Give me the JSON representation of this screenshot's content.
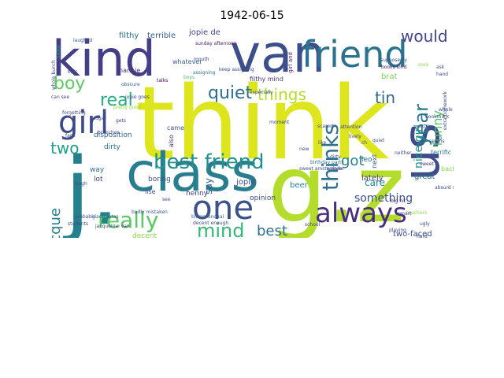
{
  "title": "1942-06-15",
  "words": [
    {
      "t": "think",
      "c": "#dde51c"
    },
    {
      "t": "g.z",
      "c": "#b3dc2c"
    },
    {
      "t": "j.",
      "c": "#25808e"
    },
    {
      "t": "class",
      "c": "#287d8e"
    },
    {
      "t": "van",
      "c": "#3c4f8a"
    },
    {
      "t": "kind",
      "c": "#433e85"
    },
    {
      "t": "us",
      "c": "#3d4d8a"
    },
    {
      "t": "friend",
      "c": "#2c728e"
    },
    {
      "t": "always",
      "c": "#472f7d"
    },
    {
      "t": "one",
      "c": "#3b528b"
    },
    {
      "t": "really",
      "c": "#5cc863"
    },
    {
      "t": "girl",
      "c": "#3e4989"
    },
    {
      "t": "best friend",
      "c": "#21908d"
    },
    {
      "t": "mind",
      "c": "#35b779"
    },
    {
      "t": "best",
      "c": "#2d708e"
    },
    {
      "t": "thinks",
      "c": "#2c728e"
    },
    {
      "t": "quiet",
      "c": "#2e6e8e"
    },
    {
      "t": "things",
      "c": "#b5de2b"
    },
    {
      "t": "tin",
      "c": "#31688e"
    },
    {
      "t": "boy",
      "c": "#5ec962"
    },
    {
      "t": "real",
      "c": "#29af7f"
    },
    {
      "t": "would",
      "c": "#414487"
    },
    {
      "t": "two",
      "c": "#1f9e89"
    },
    {
      "t": "got",
      "c": "#26828e"
    },
    {
      "t": "jacque",
      "c": "#277f8e"
    },
    {
      "t": "year",
      "c": "#2a788e"
    },
    {
      "t": "funny",
      "c": "#52c569"
    },
    {
      "t": "nice girl",
      "c": "#1f958b"
    },
    {
      "t": "something",
      "c": "#3b528b"
    },
    {
      "t": "care",
      "c": "#25848e"
    },
    {
      "t": "say",
      "c": "#34618d"
    },
    {
      "t": "filthy",
      "c": "#306a8e"
    },
    {
      "t": "terrible",
      "c": "#355f8d"
    },
    {
      "t": "jopie de",
      "c": "#3f4788"
    },
    {
      "t": "filthy mind",
      "c": "#46327e"
    },
    {
      "t": "girl and",
      "c": "#481b6d"
    },
    {
      "t": "cheerful disposition",
      "c": "#31b57b"
    },
    {
      "t": "two-faced",
      "c": "#3e4c8a"
    },
    {
      "t": "cheerful",
      "c": "#a2da37"
    },
    {
      "t": "beer",
      "c": "#24878e"
    },
    {
      "t": "jopie",
      "c": "#3e4a89"
    },
    {
      "t": "opinion",
      "c": "#3b528b"
    },
    {
      "t": "henny",
      "c": "#433d84"
    },
    {
      "t": "boring",
      "c": "#3d4e8a"
    },
    {
      "t": "decent",
      "c": "#8bd646"
    },
    {
      "t": "dirty",
      "c": "#2d708e"
    },
    {
      "t": "disposition",
      "c": "#33638d"
    },
    {
      "t": "lot",
      "c": "#414287"
    },
    {
      "t": "way",
      "c": "#2e6d8e"
    },
    {
      "t": "nice",
      "c": "#31688e"
    },
    {
      "t": "lately",
      "c": "#424186"
    },
    {
      "t": "great",
      "c": "#2e6f8e"
    },
    {
      "t": "brat",
      "c": "#7ad151"
    },
    {
      "t": "leo",
      "c": "#2b758e"
    },
    {
      "t": "whatever",
      "c": "#355e8d"
    },
    {
      "t": "nannie",
      "c": "#472c7a"
    },
    {
      "t": "came",
      "c": "#39558c"
    },
    {
      "t": "also",
      "c": "#46327e"
    },
    {
      "t": "ilse",
      "c": "#3b528b"
    },
    {
      "t": "next",
      "c": "#34608d"
    },
    {
      "t": "terrific",
      "c": "#2a778e"
    },
    {
      "t": "back",
      "c": "#84d44b"
    },
    {
      "t": "thought",
      "c": "#6ece58"
    },
    {
      "t": "teachers",
      "c": "#b8de29"
    },
    {
      "t": "birthday party",
      "c": "#2d708e"
    },
    {
      "t": "jacqueline van",
      "c": "#3f4889"
    },
    {
      "t": "classmates",
      "c": "#355f8d"
    },
    {
      "t": "sunday afternoon",
      "c": "#48186a"
    },
    {
      "t": "boys",
      "c": "#56c667"
    },
    {
      "t": "especially",
      "c": "#39568c"
    },
    {
      "t": "assigning",
      "c": "#2a778e"
    },
    {
      "t": "badly mistaken",
      "c": "#38588c"
    },
    {
      "t": "blommendaal",
      "c": "#365d8d"
    },
    {
      "t": "decent enough",
      "c": "#3e4989"
    },
    {
      "t": "cheerful",
      "c": "#8fd744"
    },
    {
      "t": "playing",
      "c": "#3e4a89"
    },
    {
      "t": "school",
      "c": "#3e4a89"
    },
    {
      "t": "probably",
      "c": "#3e4a89"
    },
    {
      "t": "students",
      "c": "#3e4a89"
    },
    {
      "t": "books kind",
      "c": "#48186a"
    },
    {
      "t": "big hit",
      "c": "#481a6c"
    },
    {
      "t": "teachers",
      "c": "#8fd744"
    },
    {
      "t": "bookmark",
      "c": "#3e4a89"
    },
    {
      "t": "sweet",
      "c": "#46307e"
    },
    {
      "t": "quiet",
      "c": "#3d4d8a"
    },
    {
      "t": "obscure",
      "c": "#33638d"
    },
    {
      "t": "sister",
      "c": "#20a386"
    },
    {
      "t": "laughed",
      "c": "#39568c"
    },
    {
      "t": "kids",
      "c": "#3e4a89"
    },
    {
      "t": "talks",
      "c": "#440154"
    },
    {
      "t": "forgetting",
      "c": "#3e4a89"
    },
    {
      "t": "whole bunch",
      "c": "#3e4a89"
    },
    {
      "t": "face",
      "c": "#3e4a89"
    },
    {
      "t": "loud voice",
      "c": "#3e4a89"
    },
    {
      "t": "pretty quiet",
      "c": "#8fd744"
    },
    {
      "t": "gets",
      "c": "#3e4a89"
    },
    {
      "t": "sugar",
      "c": "#3e4a89"
    },
    {
      "t": "mouth",
      "c": "#3e4a89"
    },
    {
      "t": "keep assigning",
      "c": "#3e4a89"
    },
    {
      "t": "see",
      "c": "#3e4a89"
    },
    {
      "t": "ask",
      "c": "#3e4a89"
    },
    {
      "t": "hand",
      "c": "#3e4a89"
    },
    {
      "t": "extra homework",
      "c": "#3e4a89"
    },
    {
      "t": "supposedly",
      "c": "#3e4a89"
    },
    {
      "t": "sock",
      "c": "#8fd744"
    },
    {
      "t": "new",
      "c": "#3e4a89"
    },
    {
      "t": "whole",
      "c": "#3e4a89"
    },
    {
      "t": "branches",
      "c": "#3e4a89"
    },
    {
      "t": "absurd stories",
      "c": "#3e4a89"
    },
    {
      "t": "jopie goes",
      "c": "#3e4a89"
    },
    {
      "t": "scared",
      "c": "#3e4a89"
    },
    {
      "t": "like",
      "c": "#3e4a89"
    },
    {
      "t": "moment",
      "c": "#3e4a89"
    },
    {
      "t": "sweet amsterdam",
      "c": "#3e4a89"
    },
    {
      "t": "dirty",
      "c": "#3e4a89"
    },
    {
      "t": "wonder",
      "c": "#3e4a89"
    },
    {
      "t": "ch",
      "c": "#3e4a89"
    },
    {
      "t": "neither",
      "c": "#3e4a89"
    },
    {
      "t": "seems",
      "c": "#3e4a89"
    },
    {
      "t": "attention",
      "c": "#3e4a89"
    },
    {
      "t": "lively",
      "c": "#3e4a89"
    },
    {
      "t": "laugh",
      "c": "#3e4a89"
    },
    {
      "t": "can see",
      "c": "#3e4a89"
    },
    {
      "t": "extra",
      "c": "#3e4a89"
    },
    {
      "t": "smart",
      "c": "#3e4a89"
    },
    {
      "t": "ugly",
      "c": "#3e4a89"
    },
    {
      "t": "hard",
      "c": "#3e4a89"
    }
  ]
}
